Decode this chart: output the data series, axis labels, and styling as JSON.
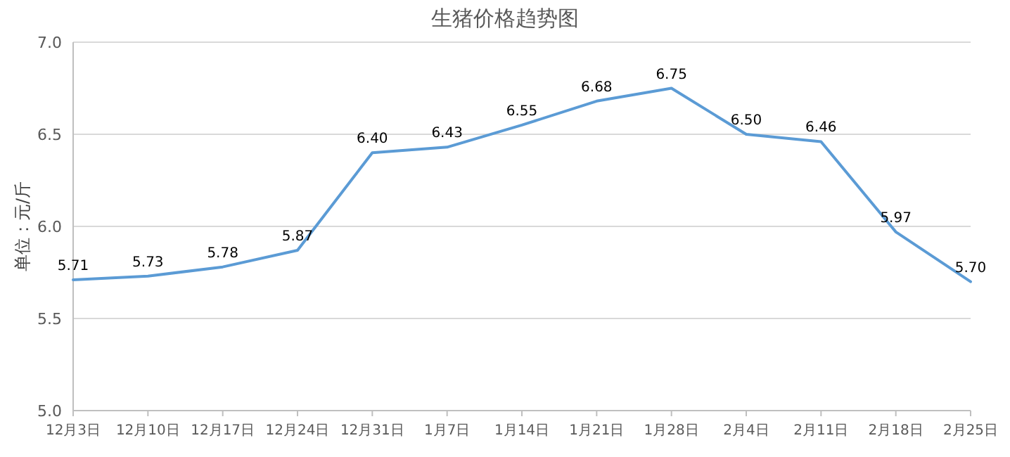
{
  "chart_data": {
    "type": "line",
    "title": "生猪价格趋势图",
    "ylabel": "单位：元/斤",
    "categories": [
      "12月3日",
      "12月10日",
      "12月17日",
      "12月24日",
      "12月31日",
      "1月7日",
      "1月14日",
      "1月21日",
      "1月28日",
      "2月4日",
      "2月11日",
      "2月18日",
      "2月25日"
    ],
    "series": [
      {
        "color": "#5b9bd5",
        "values": [
          5.71,
          5.73,
          5.78,
          5.87,
          6.4,
          6.43,
          6.55,
          6.68,
          6.75,
          6.5,
          6.46,
          5.97,
          5.7
        ],
        "value_labels": [
          "5.71",
          "5.73",
          "5.78",
          "5.87",
          "6.40",
          "6.43",
          "6.55",
          "6.68",
          "6.75",
          "6.50",
          "6.46",
          "5.97",
          "5.70"
        ]
      }
    ],
    "ylim": [
      5.0,
      7.0
    ],
    "yticks": [
      {
        "value": 5,
        "label": "5.0"
      },
      {
        "value": 5.5,
        "label": "5.5"
      },
      {
        "value": 6,
        "label": "6.0"
      },
      {
        "value": 6.5,
        "label": "6.5"
      },
      {
        "value": 7,
        "label": "7.0"
      }
    ],
    "grid": "y",
    "marker": "none",
    "line_style": "solid"
  }
}
